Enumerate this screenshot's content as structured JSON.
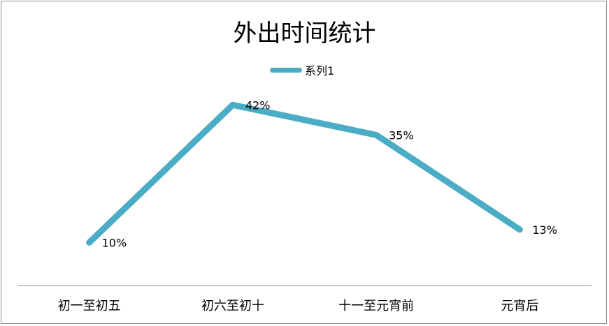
{
  "chart_data": {
    "type": "line",
    "title": "外出时间统计",
    "categories": [
      "初一至初五",
      "初六至初十",
      "十一至元宵前",
      "元宵后"
    ],
    "series": [
      {
        "name": "系列1",
        "values": [
          0.1,
          0.42,
          0.35,
          0.13
        ],
        "data_labels": [
          "10%",
          "42%",
          "35%",
          "13%"
        ],
        "color": "#4bacc6"
      }
    ],
    "ylim": [
      0,
      0.5
    ],
    "grid": false,
    "y_axis_visible": false,
    "legend_position": "top"
  }
}
